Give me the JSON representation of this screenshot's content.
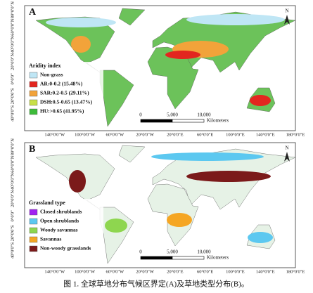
{
  "figure": {
    "panels": [
      {
        "label": "A",
        "legend": {
          "title": "Aridity index",
          "items": [
            {
              "label": "Non-grass",
              "color": "#bfe6f5"
            },
            {
              "label": "AR:0-0.2 (15.48%)",
              "color": "#e3261f"
            },
            {
              "label": "SAR:0.2-0.5 (29.11%)",
              "color": "#f2a33a"
            },
            {
              "label": "DSH:0.5-0.65 (13.47%)",
              "color": "#c8df48"
            },
            {
              "label": "HU:>0.65 (41.95%)",
              "color": "#3dbb3a"
            }
          ]
        },
        "scale": {
          "ticks": [
            "0",
            "5,000",
            "10,000"
          ],
          "unit": "Kilometers"
        },
        "north": "N"
      },
      {
        "label": "B",
        "legend": {
          "title": "Grassland type",
          "items": [
            {
              "label": "Closed shrublands",
              "color": "#a020f0"
            },
            {
              "label": "Open shrublands",
              "color": "#5cc8f0"
            },
            {
              "label": "Woody savannas",
              "color": "#8ed64f"
            },
            {
              "label": "Savannas",
              "color": "#f5a623"
            },
            {
              "label": "Non-woody grasslands",
              "color": "#7b1a1a"
            }
          ]
        },
        "scale": {
          "ticks": [
            "0",
            "5,000",
            "10,000"
          ],
          "unit": "Kilometers"
        },
        "north": "N"
      }
    ],
    "lat_labels": [
      "80°0'0\"N",
      "60°0'0\"N",
      "40°0'0\"N",
      "20°0'0\"N",
      "0°0'0\"",
      "20°0'0\"S",
      "40°0'0\"S"
    ],
    "lon_labels": [
      "140°0'0\"W",
      "100°0'0\"W",
      "60°0'0\"W",
      "20°0'0\"W",
      "20°0'0\"E",
      "60°0'0\"E",
      "100°0'0\"E",
      "140°0'0\"E",
      "180°0'0\"E"
    ],
    "caption": "图 1. 全球草地分布气候区界定(A)及草地类型分布(B)。"
  }
}
